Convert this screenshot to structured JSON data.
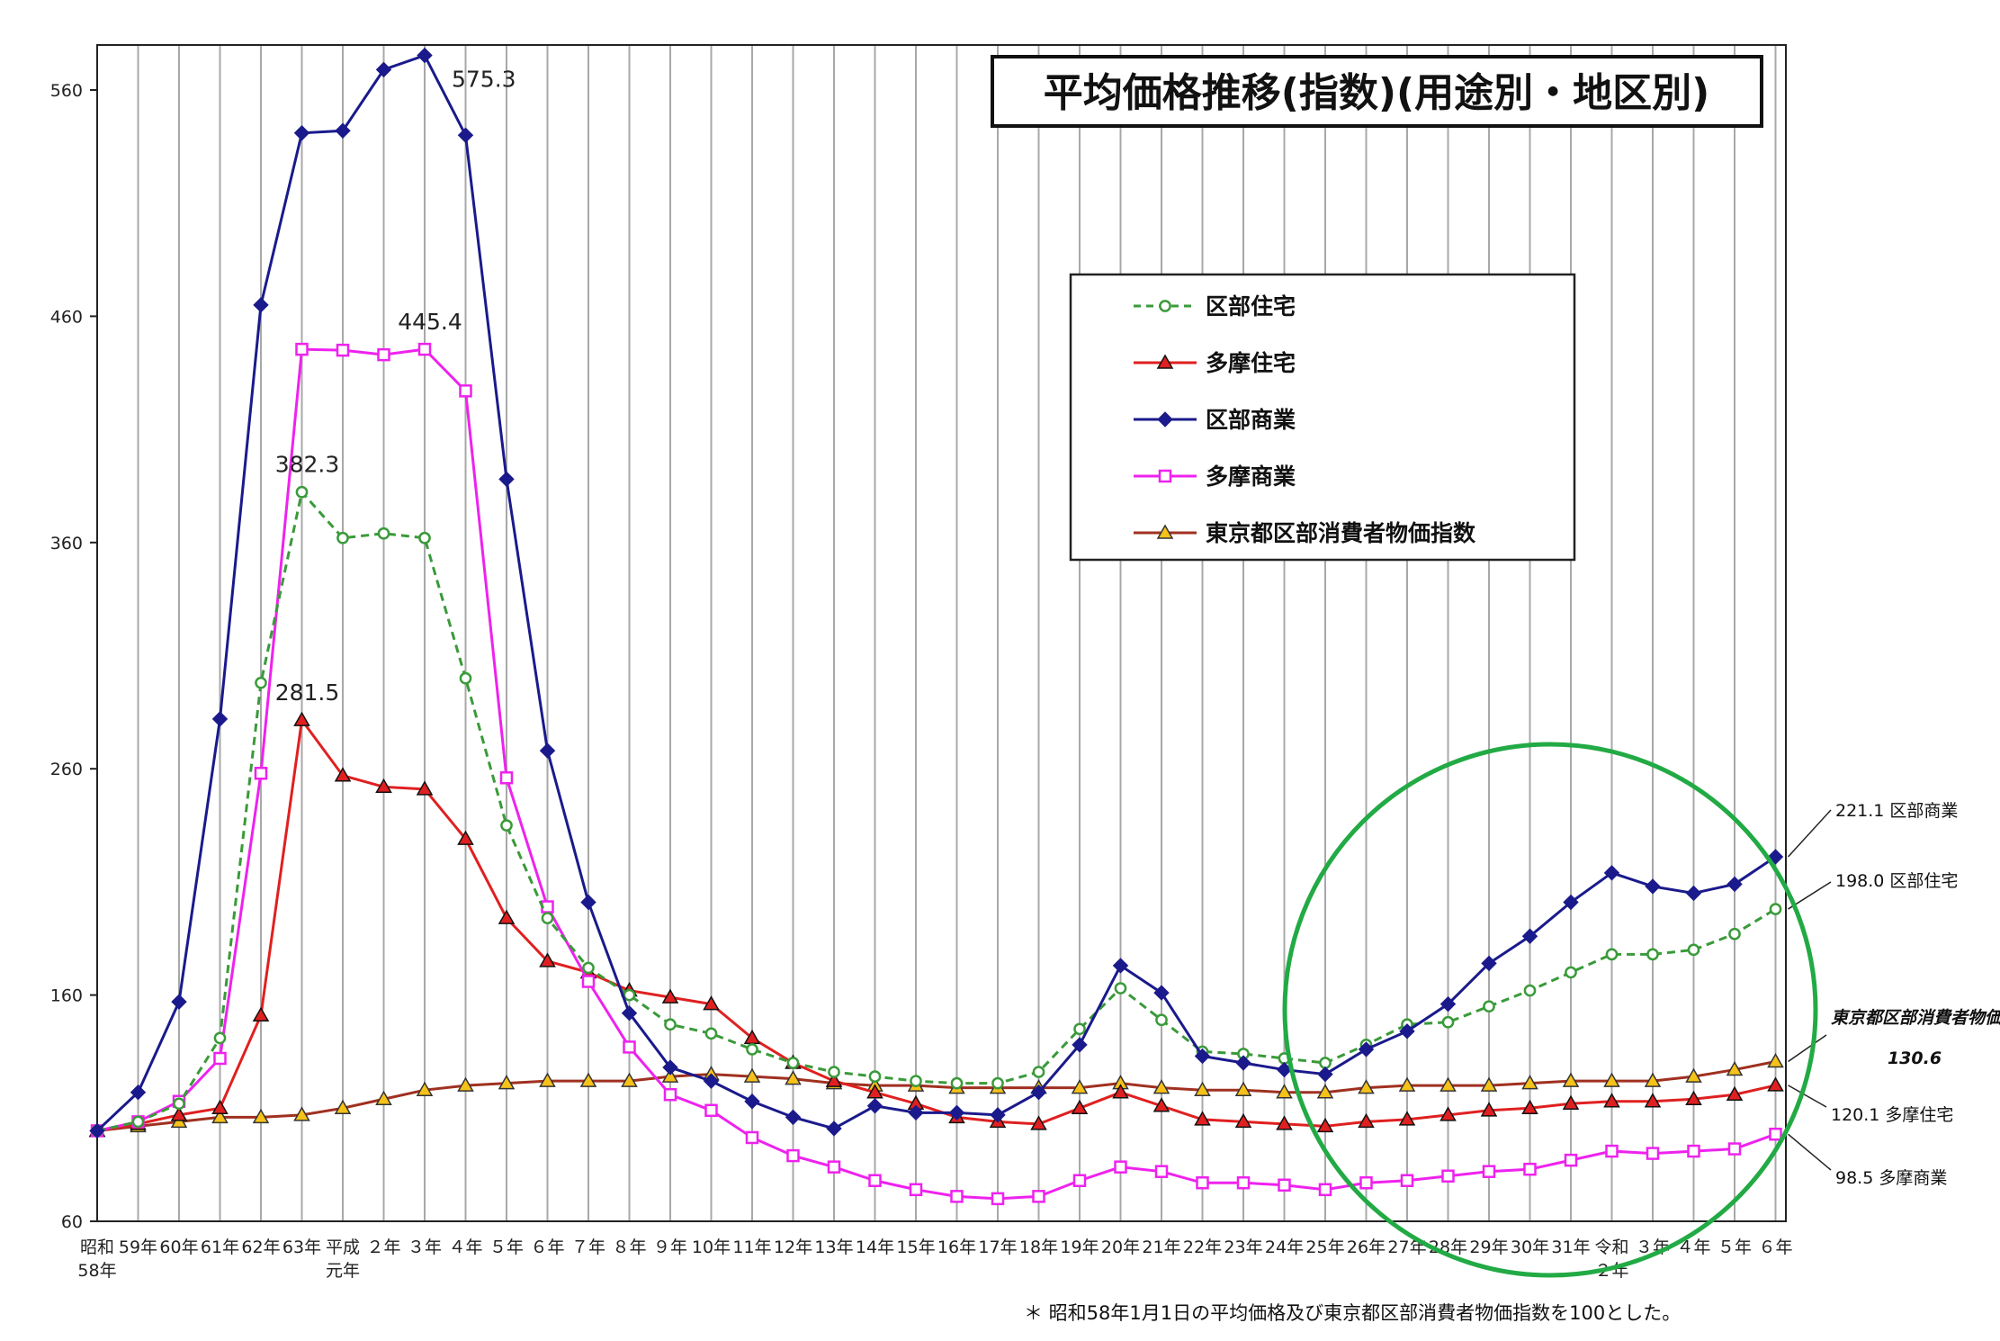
{
  "chart_data": {
    "type": "line",
    "title": "平均価格推移(指数)(用途別・地区別)",
    "footnote": "＊ 昭和58年1月1日の平均価格及び東京都区部消費者物価指数を100とした。",
    "ylim": [
      60,
      580
    ],
    "y_ticks": [
      "60",
      "160",
      "260",
      "360",
      "460",
      "560"
    ],
    "grid": "vertical lines",
    "legend_position": "upper-right",
    "x_tick_labels": [
      [
        "昭和",
        "58年"
      ],
      [
        "59年"
      ],
      [
        "60年"
      ],
      [
        "61年"
      ],
      [
        "62年"
      ],
      [
        "63年"
      ],
      [
        "平成",
        "元年"
      ],
      [
        "２年"
      ],
      [
        "３年"
      ],
      [
        "４年"
      ],
      [
        "５年"
      ],
      [
        "６年"
      ],
      [
        "７年"
      ],
      [
        "８年"
      ],
      [
        "９年"
      ],
      [
        "10年"
      ],
      [
        "11年"
      ],
      [
        "12年"
      ],
      [
        "13年"
      ],
      [
        "14年"
      ],
      [
        "15年"
      ],
      [
        "16年"
      ],
      [
        "17年"
      ],
      [
        "18年"
      ],
      [
        "19年"
      ],
      [
        "20年"
      ],
      [
        "21年"
      ],
      [
        "22年"
      ],
      [
        "23年"
      ],
      [
        "24年"
      ],
      [
        "25年"
      ],
      [
        "26年"
      ],
      [
        "27年"
      ],
      [
        "28年"
      ],
      [
        "29年"
      ],
      [
        "30年"
      ],
      [
        "31年"
      ],
      [
        "令和",
        "２年"
      ],
      [
        "３年"
      ],
      [
        "４年"
      ],
      [
        "５年"
      ],
      [
        "６年"
      ]
    ],
    "series": [
      {
        "name": "区部住宅",
        "color": "#3a9a3a",
        "marker": "circle-open",
        "dashed": true,
        "values": [
          100,
          104,
          112,
          141,
          298,
          382.3,
          362,
          364,
          362,
          300,
          235,
          194,
          172,
          160,
          147,
          143,
          136,
          130,
          126,
          124,
          122,
          121,
          121,
          126,
          145,
          163,
          149,
          135,
          134,
          132,
          130,
          138,
          147,
          148,
          155,
          162,
          170,
          178,
          178,
          180,
          187,
          198.0
        ]
      },
      {
        "name": "多摩住宅",
        "color": "#e02020",
        "marker": "triangle-filled",
        "dashed": false,
        "values": [
          100,
          103,
          107,
          110,
          151,
          281.5,
          257,
          252,
          251,
          229,
          194,
          175,
          170,
          162,
          159,
          156,
          141,
          130,
          122,
          117,
          112,
          106,
          104,
          103,
          110,
          117,
          111,
          105,
          104,
          103,
          102,
          104,
          105,
          107,
          109,
          110,
          112,
          113,
          113,
          114,
          116,
          120.1
        ]
      },
      {
        "name": "区部商業",
        "color": "#1a1a8c",
        "marker": "diamond-filled",
        "dashed": false,
        "values": [
          100,
          117,
          157,
          282,
          465,
          541,
          542,
          569,
          575.3,
          540,
          388,
          268,
          201,
          152,
          128,
          122,
          113,
          106,
          101,
          111,
          108,
          108,
          107,
          117,
          138,
          173,
          161,
          133,
          130,
          127,
          125,
          136,
          144,
          156,
          174,
          186,
          201,
          214,
          208,
          205,
          209,
          221.1
        ]
      },
      {
        "name": "多摩商業",
        "color": "#ee22ee",
        "marker": "square-open",
        "dashed": false,
        "values": [
          100,
          104,
          113,
          132,
          258,
          445.4,
          445,
          443,
          445.4,
          427,
          256,
          199,
          166,
          137,
          116,
          109,
          97,
          89,
          84,
          78,
          74,
          71,
          70,
          71,
          78,
          84,
          82,
          77,
          77,
          76,
          74,
          77,
          78,
          80,
          82,
          83,
          87,
          91,
          90,
          91,
          92,
          98.5
        ]
      },
      {
        "name": "東京都区部消費者物価指数",
        "color": "#a03020",
        "marker": "triangle-yellow",
        "dashed": false,
        "values": [
          100,
          102,
          104,
          106,
          106,
          107,
          110,
          114,
          118,
          120,
          121,
          122,
          122,
          122,
          124,
          125,
          124,
          123,
          121,
          120,
          120,
          119,
          119,
          119,
          119,
          121,
          119,
          118,
          118,
          117,
          117,
          119,
          120,
          120,
          120,
          121,
          122,
          122,
          122,
          124,
          127,
          130.6
        ]
      }
    ],
    "peak_labels": [
      {
        "series": 2,
        "index": 8,
        "text": "575.3"
      },
      {
        "series": 3,
        "index": 8,
        "text": "445.4"
      },
      {
        "series": 0,
        "index": 5,
        "text": "382.3"
      },
      {
        "series": 1,
        "index": 5,
        "text": "281.5"
      }
    ],
    "end_labels": [
      {
        "series": 2,
        "text": "221.1 区部商業"
      },
      {
        "series": 0,
        "text": "198.0 区部住宅"
      },
      {
        "series": 4,
        "text": "東京都区部消費者物価指数",
        "value_text": "130.6"
      },
      {
        "series": 1,
        "text": "120.1 多摩住宅"
      },
      {
        "series": 3,
        "text": "98.5 多摩商業"
      }
    ],
    "highlight": {
      "shape": "circle",
      "color": "#22aa44",
      "note": "recent upward trend highlighted"
    }
  }
}
